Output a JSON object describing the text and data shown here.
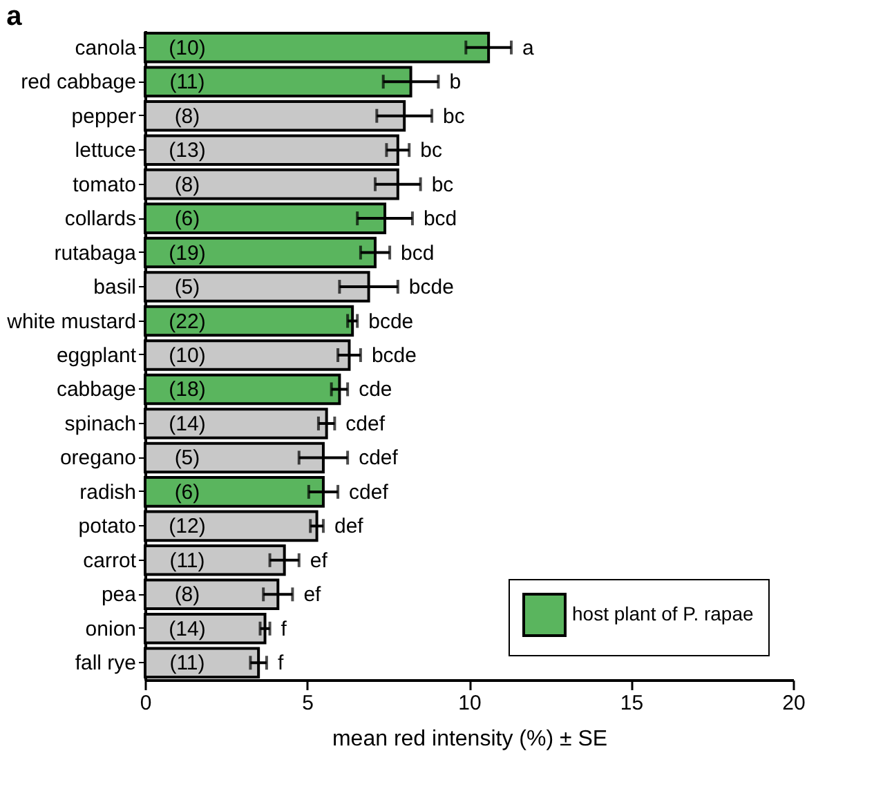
{
  "chart_data": {
    "type": "bar",
    "orientation": "horizontal",
    "title": "a",
    "xlabel": "mean red intensity (%) ± SE",
    "categories": [
      "canola",
      "red cabbage",
      "pepper",
      "lettuce",
      "tomato",
      "collards",
      "rutabaga",
      "basil",
      "white mustard",
      "eggplant",
      "cabbage",
      "spinach",
      "oregano",
      "radish",
      "potato",
      "carrot",
      "pea",
      "onion",
      "fall rye"
    ],
    "series": [
      {
        "name": "host plant of P. rapae",
        "color": "#5ab55e",
        "values": [
          10.6,
          8.2,
          null,
          null,
          null,
          7.4,
          7.1,
          null,
          6.4,
          null,
          6.0,
          null,
          null,
          5.5,
          null,
          null,
          null,
          null,
          null
        ],
        "errors": [
          0.7,
          0.85,
          null,
          null,
          null,
          0.85,
          0.45,
          null,
          0.15,
          null,
          0.25,
          null,
          null,
          0.45,
          null,
          null,
          null,
          null,
          null
        ]
      },
      {
        "color": "#c8c8c8",
        "values": [
          null,
          null,
          8.0,
          7.8,
          7.8,
          null,
          null,
          6.9,
          null,
          6.3,
          null,
          5.6,
          5.5,
          null,
          5.3,
          4.3,
          4.1,
          3.7,
          3.5
        ],
        "errors": [
          null,
          null,
          0.85,
          0.35,
          0.7,
          null,
          null,
          0.9,
          null,
          0.35,
          null,
          0.25,
          0.75,
          null,
          0.2,
          0.45,
          0.45,
          0.15,
          0.25
        ]
      }
    ],
    "xlim": [
      0,
      20
    ],
    "xticks": [
      0,
      5,
      10,
      15,
      20
    ],
    "grid": false,
    "legend": "bottom right",
    "annotations": [
      "(10)",
      "(11)",
      "(8)",
      "(13)",
      "(8)",
      "(6)",
      "(19)",
      "(5)",
      "(22)",
      "(10)",
      "(18)",
      "(14)",
      "(5)",
      "(6)",
      "(12)",
      "(11)",
      "(8)",
      "(14)",
      "(11)",
      "a",
      "b",
      "bc",
      "bc",
      "bc",
      "bcd",
      "bcd",
      "bcde",
      "bcde",
      "bcde",
      "cde",
      "cdef",
      "cdef",
      "cdef",
      "def",
      "ef",
      "ef",
      "f",
      "f"
    ]
  }
}
